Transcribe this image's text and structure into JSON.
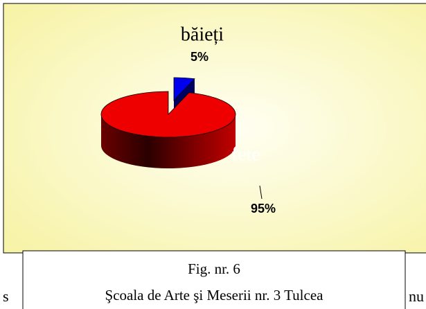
{
  "chart_data": {
    "type": "pie",
    "categories": [
      "băieți",
      "fete"
    ],
    "values": [
      5,
      95
    ],
    "value_labels": [
      "5%",
      "95%"
    ],
    "colors": [
      "#0000ee",
      "#ee0000"
    ],
    "caption": [
      "Fig. nr. 6",
      "Şcoala de Arte şi Meserii nr. 3 Tulcea"
    ],
    "background_text": [
      "s",
      "nu"
    ]
  }
}
